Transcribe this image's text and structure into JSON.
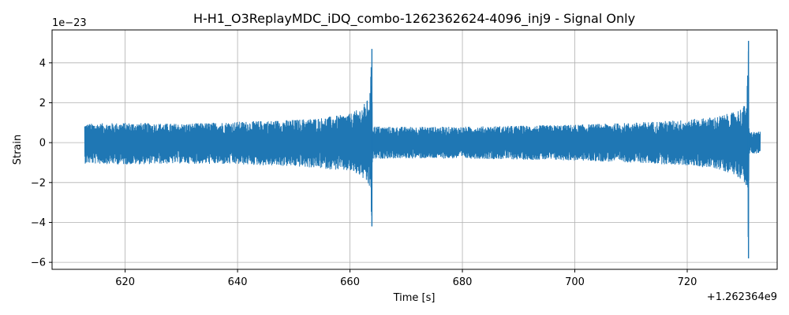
{
  "chart_data": {
    "type": "line",
    "title": "H-H1_O3ReplayMDC_iDQ_combo-1262362624-4096_inj9 - Signal Only",
    "xlabel": "Time [s]",
    "ylabel": "Strain",
    "x_offset_label": "+1.262364e9",
    "y_scale_label": "1e−23",
    "xlim": [
      607,
      736
    ],
    "ylim": [
      -6.35,
      5.65
    ],
    "x_ticks": [
      620,
      640,
      660,
      680,
      700,
      720
    ],
    "x_tick_labels": [
      "620",
      "640",
      "660",
      "680",
      "700",
      "720"
    ],
    "y_ticks": [
      -6,
      -4,
      -2,
      0,
      2,
      4
    ],
    "y_tick_labels": [
      "−6",
      "−4",
      "−2",
      "0",
      "2",
      "4"
    ],
    "grid": true,
    "line_color": "#1f77b4",
    "series": [
      {
        "x": [
          612.8,
          620,
          630,
          640,
          650,
          655,
          660,
          662,
          663.5,
          663.9,
          664.0,
          664.2,
          666,
          670,
          680,
          690,
          700,
          710,
          720,
          725,
          728,
          730,
          730.6,
          730.9,
          731.0,
          731.2,
          733.0
        ],
        "envelope_upper": [
          0.95,
          1.0,
          0.95,
          1.05,
          1.15,
          1.25,
          1.45,
          1.75,
          2.3,
          4.7,
          0.9,
          0.85,
          0.8,
          0.8,
          0.8,
          0.85,
          0.9,
          1.0,
          1.15,
          1.3,
          1.5,
          1.8,
          2.3,
          5.1,
          0.6,
          0.55,
          0.55
        ],
        "envelope_lower": [
          -1.05,
          -1.1,
          -1.05,
          -1.1,
          -1.2,
          -1.3,
          -1.45,
          -1.7,
          -2.3,
          -4.2,
          -0.9,
          -0.85,
          -0.8,
          -0.8,
          -0.8,
          -0.85,
          -0.9,
          -1.0,
          -1.15,
          -1.3,
          -1.55,
          -1.9,
          -2.3,
          -5.8,
          -0.65,
          -0.55,
          -0.55
        ]
      }
    ]
  }
}
